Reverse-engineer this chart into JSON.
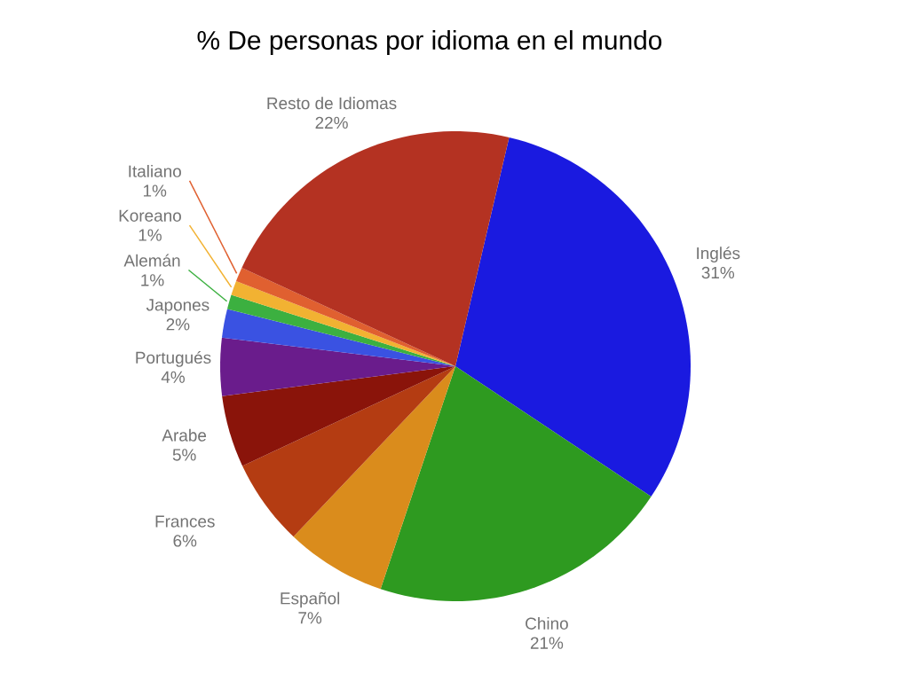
{
  "chart_data": {
    "type": "pie",
    "title": "% De personas por idioma en el mundo",
    "categories": [
      "Inglés",
      "Chino",
      "Español",
      "Frances",
      "Arabe",
      "Portugués",
      "Japones",
      "Alemán",
      "Koreano",
      "Italiano",
      "Resto de Idiomas"
    ],
    "values": [
      31,
      21,
      7,
      6,
      5,
      4,
      2,
      1,
      1,
      1,
      22
    ],
    "value_labels": [
      "31%",
      "21%",
      "7%",
      "6%",
      "5%",
      "4%",
      "2%",
      "1%",
      "1%",
      "1%",
      "22%"
    ],
    "colors": [
      "#1a1ae0",
      "#2e9a20",
      "#da8c1c",
      "#b43c12",
      "#8a140a",
      "#6a1c8c",
      "#3a52e2",
      "#3cb040",
      "#f2b232",
      "#e06030",
      "#b43222"
    ]
  }
}
